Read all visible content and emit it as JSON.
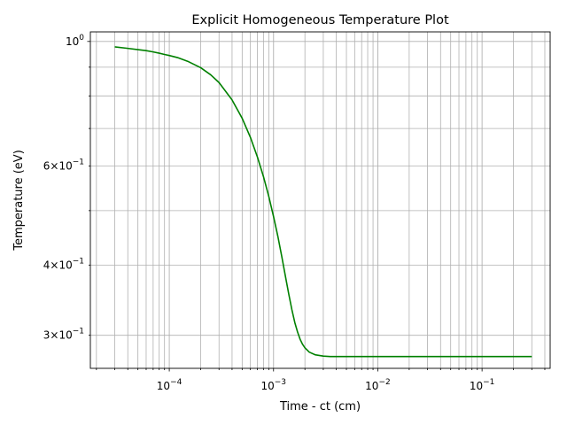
{
  "chart_data": {
    "type": "line",
    "title": "Explicit Homogeneous Temperature Plot",
    "xlabel": "Time - ct (cm)",
    "ylabel": "Temperature (eV)",
    "xscale": "log",
    "yscale": "log",
    "xlim": [
      1.75e-05,
      0.45
    ],
    "ylim": [
      0.262,
      1.04
    ],
    "grid": "major and minor",
    "x_ticks": [
      {
        "value": 0.0001,
        "base": "10",
        "exp": "−4"
      },
      {
        "value": 0.001,
        "base": "10",
        "exp": "−3"
      },
      {
        "value": 0.01,
        "base": "10",
        "exp": "−2"
      },
      {
        "value": 0.1,
        "base": "10",
        "exp": "−1"
      }
    ],
    "y_ticks": [
      {
        "value": 1.0,
        "mant": "",
        "base": "10",
        "exp": "0"
      },
      {
        "value": 0.6,
        "mant": "6×",
        "base": "10",
        "exp": "−1"
      },
      {
        "value": 0.4,
        "mant": "4×",
        "base": "10",
        "exp": "−1"
      },
      {
        "value": 0.3,
        "mant": "3×",
        "base": "10",
        "exp": "−1"
      }
    ],
    "series": [
      {
        "color": "#008000",
        "x": [
          3e-05,
          4e-05,
          5e-05,
          6e-05,
          7e-05,
          8e-05,
          9e-05,
          0.0001,
          0.00012,
          0.00015,
          0.0002,
          0.00025,
          0.0003,
          0.0004,
          0.0005,
          0.0006,
          0.0007,
          0.0008,
          0.0009,
          0.001,
          0.0011,
          0.0012,
          0.0013,
          0.0014,
          0.0015,
          0.0016,
          0.0017,
          0.0018,
          0.0019,
          0.002,
          0.0022,
          0.0025,
          0.003,
          0.0035,
          0.004,
          0.005,
          0.007,
          0.01,
          0.02,
          0.05,
          0.1,
          0.3
        ],
        "y": [
          0.978,
          0.972,
          0.967,
          0.963,
          0.958,
          0.953,
          0.948,
          0.944,
          0.936,
          0.922,
          0.898,
          0.872,
          0.845,
          0.787,
          0.73,
          0.675,
          0.623,
          0.575,
          0.53,
          0.488,
          0.45,
          0.414,
          0.382,
          0.355,
          0.333,
          0.316,
          0.304,
          0.295,
          0.289,
          0.285,
          0.28,
          0.277,
          0.2755,
          0.275,
          0.275,
          0.275,
          0.275,
          0.275,
          0.275,
          0.275,
          0.275,
          0.275
        ]
      }
    ]
  }
}
